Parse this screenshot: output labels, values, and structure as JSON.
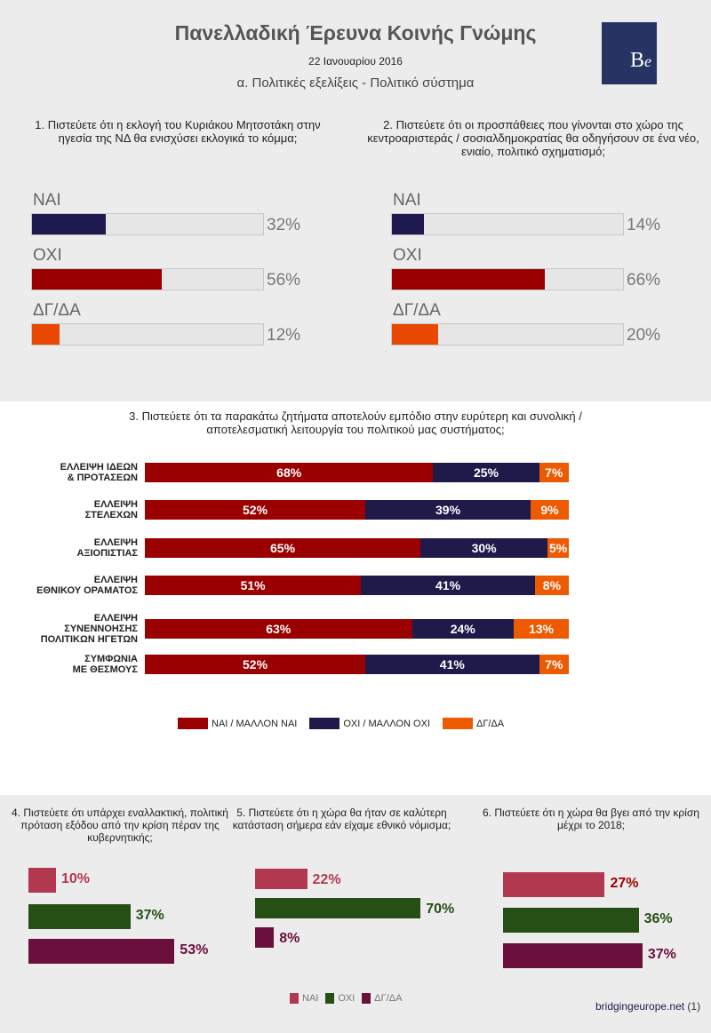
{
  "header": {
    "title": "Πανελλαδική Έρευνα Κοινής Γνώμης",
    "date": "22 Ιανουαρίου 2016",
    "section": "α. Πολιτικές εξελίξεις - Πολιτικό σύστημα",
    "logo_text": "Be"
  },
  "colors": {
    "nai": "#1e1a4f",
    "oxi": "#9b0000",
    "dgda": "#e84800",
    "q3_nai": "#9b0000",
    "q3_oxi": "#1f1a4a",
    "q3_dgda": "#ee5a00",
    "b_nai": "#b23850",
    "b_oxi": "#264f16",
    "b_dgda": "#6b0f3c"
  },
  "chart_data": [
    {
      "type": "bar",
      "title": "1. Πιστεύετε ότι η εκλογή του Κυριάκου Μητσοτάκη στην ηγεσία της ΝΔ θα ενισχύσει εκλογικά το κόμμα;",
      "categories": [
        "ΝΑΙ",
        "ΟΧΙ",
        "ΔΓ/ΔΑ"
      ],
      "values": [
        32,
        56,
        12
      ],
      "labels": [
        "32%",
        "56%",
        "12%"
      ],
      "ylim": [
        0,
        100
      ]
    },
    {
      "type": "bar",
      "title": "2. Πιστεύετε ότι οι προσπάθειες που γίνονται στο χώρο της κεντροαριστεράς / σοσιαλδημοκρατίας θα οδηγήσουν σε ένα νέο, ενιαίο, πολιτικό σχηματισμό;",
      "categories": [
        "ΝΑΙ",
        "ΟΧΙ",
        "ΔΓ/ΔΑ"
      ],
      "values": [
        14,
        66,
        20
      ],
      "labels": [
        "14%",
        "66%",
        "20%"
      ],
      "ylim": [
        0,
        100
      ]
    },
    {
      "type": "bar",
      "stacked": true,
      "title": "3. Πιστεύετε ότι τα παρακάτω ζητήματα αποτελούν εμπόδιο στην ευρύτερη και συνολική / αποτελεσματική λειτουργία του πολιτικού μας συστήματος;",
      "categories": [
        [
          "ΕΛΛΕΙΨΗ ΙΔΕΩΝ",
          "& ΠΡΟΤΑΣΕΩΝ"
        ],
        [
          "ΕΛΛΕΙΨΗ",
          "ΣΤΕΛΕΧΩΝ"
        ],
        [
          "ΕΛΛΕΙΨΗ",
          "ΑΞΙΟΠΙΣΤΙΑΣ"
        ],
        [
          "ΕΛΛΕΙΨΗ",
          "ΕΘΝΙΚΟΥ ΟΡΑΜΑΤΟΣ"
        ],
        [
          "ΕΛΛΕΙΨΗ",
          "ΣΥΝΕΝΝΟΗΣΗΣ",
          "ΠΟΛΙΤΙΚΩΝ ΗΓΕΤΩΝ"
        ],
        [
          "ΣΥΜΦΩΝΙΑ",
          "ΜΕ ΘΕΣΜΟΥΣ"
        ]
      ],
      "series": [
        {
          "name": "ΝΑΙ / ΜΑΛΛΟΝ ΝΑΙ",
          "values": [
            68,
            52,
            65,
            51,
            63,
            52
          ]
        },
        {
          "name": "ΟΧΙ / ΜΑΛΛΟΝ ΟΧΙ",
          "values": [
            25,
            39,
            30,
            41,
            24,
            41
          ]
        },
        {
          "name": "ΔΓ/ΔΑ",
          "values": [
            7,
            9,
            5,
            8,
            13,
            7
          ]
        }
      ],
      "legend": "bottom"
    },
    {
      "type": "bar",
      "title": "4. Πιστεύετε ότι υπάρχει εναλλακτική, πολιτική πρόταση εξόδου από την κρίση πέραν της κυβερνητικής;",
      "categories": [
        "ΝΑΙ",
        "ΟΧΙ",
        "ΔΓ/ΔΑ"
      ],
      "values": [
        10,
        37,
        53
      ]
    },
    {
      "type": "bar",
      "title": "5. Πιστεύετε ότι η χώρα θα ήταν σε καλύτερη κατάσταση σήμερα εάν είχαμε εθνικό νόμισμα;",
      "categories": [
        "ΝΑΙ",
        "ΟΧΙ",
        "ΔΓ/ΔΑ"
      ],
      "values": [
        22,
        70,
        8
      ]
    },
    {
      "type": "bar",
      "title": "6. Πιστεύετε ότι η χώρα θα βγει από την κρίση μέχρι το 2018;",
      "categories": [
        "ΝΑΙ",
        "ΟΧΙ",
        "ΔΓ/ΔΑ"
      ],
      "values": [
        27,
        36,
        37
      ]
    }
  ],
  "bottom_legend": [
    "ΝΑΙ",
    "ΟΧΙ",
    "ΔΓ/ΔΑ"
  ],
  "footer": {
    "source": "bridgingeurope.net",
    "page": "(1)"
  }
}
